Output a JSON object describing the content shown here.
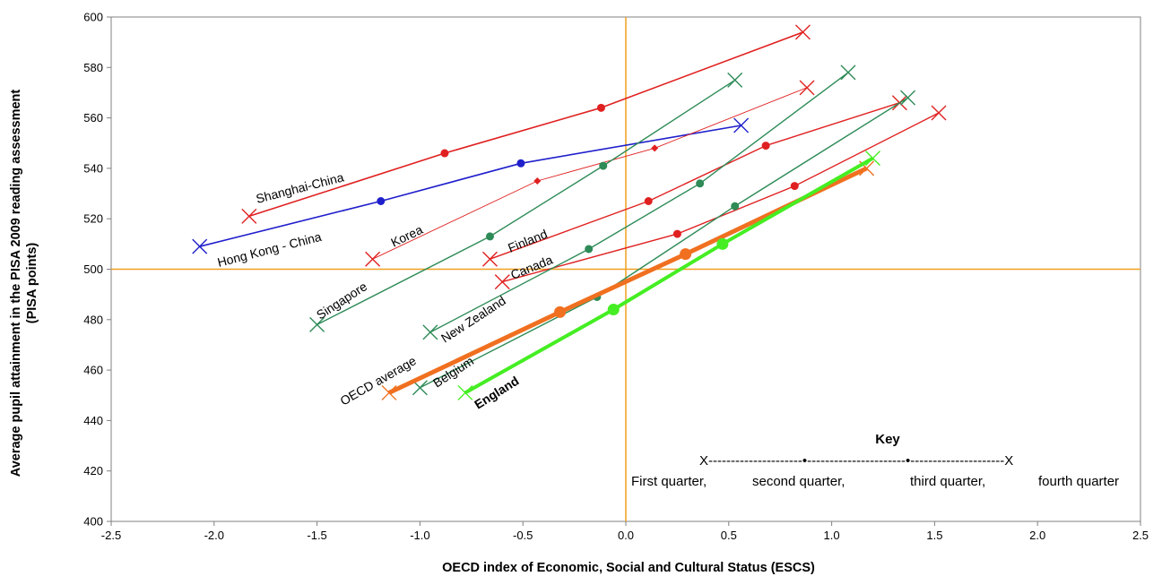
{
  "chart_data": {
    "type": "line",
    "xlabel": "OECD index of Economic, Social and Cultural Status (ESCS)",
    "ylabel_lines": [
      "Average pupil attainment in the PISA 2009 reading assessment",
      "(PISA points)"
    ],
    "xlim": [
      -2.5,
      2.5
    ],
    "ylim": [
      400,
      600
    ],
    "x_ticks": [
      "-2.5",
      "-2.0",
      "-1.5",
      "-1.0",
      "-0.5",
      "0.0",
      "0.5",
      "1.0",
      "1.5",
      "2.0",
      "2.5"
    ],
    "y_ticks": [
      "400",
      "420",
      "440",
      "460",
      "480",
      "500",
      "520",
      "540",
      "560",
      "580",
      "600"
    ],
    "reference_lines": {
      "x": 0,
      "y": 500,
      "color": "#f0a020"
    },
    "grid": false,
    "series": [
      {
        "name": "Shanghai-China",
        "color": "#e02020",
        "width": 1.6,
        "marker": "circle",
        "points": [
          [
            -1.83,
            521
          ],
          [
            -0.88,
            546
          ],
          [
            -0.12,
            564
          ],
          [
            0.86,
            594
          ]
        ]
      },
      {
        "name": "Hong Kong - China",
        "color": "#1f1fcc",
        "width": 1.6,
        "marker": "circle",
        "points": [
          [
            -2.07,
            509
          ],
          [
            -1.19,
            527
          ],
          [
            -0.51,
            542
          ],
          [
            0.56,
            557
          ]
        ]
      },
      {
        "name": "Korea",
        "color": "#e02020",
        "width": 0.9,
        "marker": "diamond",
        "points": [
          [
            -1.23,
            504
          ],
          [
            -0.43,
            535
          ],
          [
            0.14,
            548
          ],
          [
            0.88,
            572
          ]
        ]
      },
      {
        "name": "Singapore",
        "color": "#2e8b57",
        "width": 1.4,
        "marker": "circle",
        "points": [
          [
            -1.5,
            478
          ],
          [
            -0.66,
            513
          ],
          [
            -0.11,
            541
          ],
          [
            0.53,
            575
          ]
        ]
      },
      {
        "name": "Finland",
        "color": "#e02020",
        "width": 1.4,
        "marker": "circle",
        "points": [
          [
            -0.66,
            504
          ],
          [
            0.11,
            527
          ],
          [
            0.68,
            549
          ],
          [
            1.33,
            566
          ]
        ]
      },
      {
        "name": "Canada",
        "color": "#e02020",
        "width": 1.4,
        "marker": "circle",
        "points": [
          [
            -0.6,
            495
          ],
          [
            0.25,
            514
          ],
          [
            0.82,
            533
          ],
          [
            1.52,
            562
          ]
        ]
      },
      {
        "name": "New Zealand",
        "color": "#2e8b57",
        "width": 1.4,
        "marker": "circle",
        "points": [
          [
            -0.95,
            475
          ],
          [
            -0.18,
            508
          ],
          [
            0.36,
            534
          ],
          [
            1.08,
            578
          ]
        ]
      },
      {
        "name": "Belgium",
        "color": "#2e8b57",
        "width": 1.4,
        "marker": "circle",
        "points": [
          [
            -1.0,
            453
          ],
          [
            -0.14,
            489
          ],
          [
            0.53,
            525
          ],
          [
            1.37,
            568
          ]
        ]
      },
      {
        "name": "OECD average",
        "color": "#f07020",
        "width": 5,
        "marker": "circle",
        "points": [
          [
            -1.15,
            451
          ],
          [
            -0.32,
            483
          ],
          [
            0.29,
            506
          ],
          [
            1.17,
            540
          ]
        ]
      },
      {
        "name": "England",
        "color": "#44ee22",
        "width": 4,
        "marker": "circle",
        "points": [
          [
            -0.78,
            451
          ],
          [
            -0.06,
            484
          ],
          [
            0.47,
            510
          ],
          [
            1.2,
            544
          ]
        ]
      }
    ],
    "labels": {
      "shanghai": "Shanghai-China",
      "hongkong": "Hong Kong - China",
      "korea": "Korea",
      "singapore": "Singapore",
      "finland": "Finland",
      "canada": "Canada",
      "newzealand": "New Zealand",
      "oecd": "OECD average",
      "belgium": "Belgium",
      "england": "England"
    },
    "key": {
      "title": "Key",
      "line": "X---------------------•----------------------•---------------------X",
      "q1": "First quarter,",
      "q2": "second quarter,",
      "q3": "third quarter,",
      "q4": "fourth quarter"
    }
  }
}
